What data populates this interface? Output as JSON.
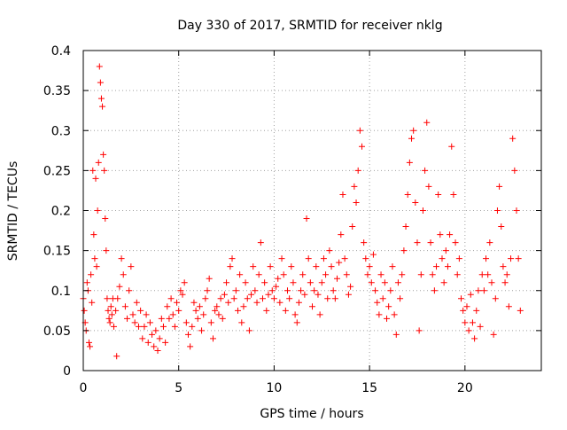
{
  "chart_data": {
    "type": "scatter",
    "title": "Day 330 of 2017, SRMTID for receiver nklg",
    "xlabel": "GPS time / hours",
    "ylabel": "SRMTID / TECUs",
    "xlim": [
      0,
      24
    ],
    "ylim": [
      0,
      0.4
    ],
    "x_ticks": [
      0,
      5,
      10,
      15,
      20
    ],
    "x_tick_labels": [
      "0",
      "5",
      "10",
      "15",
      "20"
    ],
    "y_ticks": [
      0,
      0.05,
      0.1,
      0.15,
      0.2,
      0.25,
      0.3,
      0.35,
      0.4
    ],
    "y_tick_labels": [
      "0",
      "0.05",
      "0.1",
      "0.15",
      "0.2",
      "0.25",
      "0.3",
      "0.35",
      "0.4"
    ],
    "grid": true,
    "marker": "+",
    "marker_color": "#ff0000",
    "series": [
      {
        "name": "SRMTID",
        "points": [
          [
            0.0,
            0.09
          ],
          [
            0.05,
            0.075
          ],
          [
            0.1,
            0.06
          ],
          [
            0.15,
            0.05
          ],
          [
            0.2,
            0.11
          ],
          [
            0.25,
            0.1
          ],
          [
            0.3,
            0.035
          ],
          [
            0.35,
            0.03
          ],
          [
            0.4,
            0.12
          ],
          [
            0.45,
            0.085
          ],
          [
            0.5,
            0.25
          ],
          [
            0.55,
            0.17
          ],
          [
            0.6,
            0.14
          ],
          [
            0.65,
            0.24
          ],
          [
            0.7,
            0.13
          ],
          [
            0.75,
            0.2
          ],
          [
            0.8,
            0.26
          ],
          [
            0.85,
            0.38
          ],
          [
            0.9,
            0.36
          ],
          [
            0.95,
            0.34
          ],
          [
            1.0,
            0.33
          ],
          [
            1.05,
            0.27
          ],
          [
            1.1,
            0.25
          ],
          [
            1.15,
            0.19
          ],
          [
            1.2,
            0.15
          ],
          [
            1.25,
            0.09
          ],
          [
            1.3,
            0.075
          ],
          [
            1.35,
            0.065
          ],
          [
            1.4,
            0.06
          ],
          [
            1.45,
            0.08
          ],
          [
            1.5,
            0.07
          ],
          [
            1.55,
            0.09
          ],
          [
            1.6,
            0.055
          ],
          [
            1.7,
            0.075
          ],
          [
            1.75,
            0.018
          ],
          [
            1.8,
            0.09
          ],
          [
            1.9,
            0.105
          ],
          [
            2.0,
            0.14
          ],
          [
            2.1,
            0.12
          ],
          [
            2.2,
            0.08
          ],
          [
            2.3,
            0.065
          ],
          [
            2.4,
            0.1
          ],
          [
            2.5,
            0.13
          ],
          [
            2.6,
            0.07
          ],
          [
            2.7,
            0.06
          ],
          [
            2.8,
            0.085
          ],
          [
            2.9,
            0.055
          ],
          [
            3.0,
            0.075
          ],
          [
            3.1,
            0.04
          ],
          [
            3.2,
            0.055
          ],
          [
            3.3,
            0.07
          ],
          [
            3.4,
            0.035
          ],
          [
            3.5,
            0.06
          ],
          [
            3.6,
            0.045
          ],
          [
            3.7,
            0.03
          ],
          [
            3.8,
            0.05
          ],
          [
            3.9,
            0.025
          ],
          [
            4.0,
            0.04
          ],
          [
            4.1,
            0.065
          ],
          [
            4.2,
            0.055
          ],
          [
            4.3,
            0.035
          ],
          [
            4.4,
            0.08
          ],
          [
            4.5,
            0.065
          ],
          [
            4.6,
            0.09
          ],
          [
            4.7,
            0.07
          ],
          [
            4.8,
            0.055
          ],
          [
            4.9,
            0.085
          ],
          [
            5.0,
            0.075
          ],
          [
            5.1,
            0.1
          ],
          [
            5.2,
            0.095
          ],
          [
            5.3,
            0.11
          ],
          [
            5.4,
            0.06
          ],
          [
            5.5,
            0.045
          ],
          [
            5.6,
            0.03
          ],
          [
            5.7,
            0.055
          ],
          [
            5.8,
            0.085
          ],
          [
            5.9,
            0.075
          ],
          [
            6.0,
            0.065
          ],
          [
            6.1,
            0.08
          ],
          [
            6.2,
            0.05
          ],
          [
            6.3,
            0.07
          ],
          [
            6.4,
            0.09
          ],
          [
            6.5,
            0.1
          ],
          [
            6.6,
            0.115
          ],
          [
            6.7,
            0.06
          ],
          [
            6.8,
            0.04
          ],
          [
            6.9,
            0.075
          ],
          [
            7.0,
            0.08
          ],
          [
            7.1,
            0.07
          ],
          [
            7.2,
            0.09
          ],
          [
            7.3,
            0.065
          ],
          [
            7.4,
            0.095
          ],
          [
            7.5,
            0.11
          ],
          [
            7.6,
            0.085
          ],
          [
            7.7,
            0.13
          ],
          [
            7.8,
            0.14
          ],
          [
            7.9,
            0.09
          ],
          [
            8.0,
            0.1
          ],
          [
            8.1,
            0.075
          ],
          [
            8.2,
            0.12
          ],
          [
            8.3,
            0.06
          ],
          [
            8.4,
            0.08
          ],
          [
            8.5,
            0.11
          ],
          [
            8.6,
            0.09
          ],
          [
            8.7,
            0.05
          ],
          [
            8.8,
            0.095
          ],
          [
            8.9,
            0.13
          ],
          [
            9.0,
            0.1
          ],
          [
            9.1,
            0.085
          ],
          [
            9.2,
            0.12
          ],
          [
            9.3,
            0.16
          ],
          [
            9.4,
            0.09
          ],
          [
            9.5,
            0.11
          ],
          [
            9.6,
            0.075
          ],
          [
            9.7,
            0.095
          ],
          [
            9.8,
            0.13
          ],
          [
            9.9,
            0.1
          ],
          [
            10.0,
            0.09
          ],
          [
            10.1,
            0.105
          ],
          [
            10.2,
            0.115
          ],
          [
            10.3,
            0.085
          ],
          [
            10.4,
            0.14
          ],
          [
            10.5,
            0.12
          ],
          [
            10.6,
            0.075
          ],
          [
            10.7,
            0.1
          ],
          [
            10.8,
            0.09
          ],
          [
            10.9,
            0.13
          ],
          [
            11.0,
            0.11
          ],
          [
            11.1,
            0.07
          ],
          [
            11.2,
            0.06
          ],
          [
            11.3,
            0.085
          ],
          [
            11.4,
            0.1
          ],
          [
            11.5,
            0.12
          ],
          [
            11.6,
            0.095
          ],
          [
            11.7,
            0.19
          ],
          [
            11.8,
            0.14
          ],
          [
            11.9,
            0.11
          ],
          [
            12.0,
            0.08
          ],
          [
            12.1,
            0.1
          ],
          [
            12.2,
            0.13
          ],
          [
            12.3,
            0.095
          ],
          [
            12.4,
            0.07
          ],
          [
            12.5,
            0.11
          ],
          [
            12.6,
            0.14
          ],
          [
            12.7,
            0.12
          ],
          [
            12.8,
            0.09
          ],
          [
            12.9,
            0.15
          ],
          [
            13.0,
            0.13
          ],
          [
            13.1,
            0.1
          ],
          [
            13.2,
            0.09
          ],
          [
            13.3,
            0.115
          ],
          [
            13.4,
            0.135
          ],
          [
            13.5,
            0.17
          ],
          [
            13.6,
            0.22
          ],
          [
            13.7,
            0.14
          ],
          [
            13.8,
            0.12
          ],
          [
            13.9,
            0.095
          ],
          [
            14.0,
            0.105
          ],
          [
            14.1,
            0.18
          ],
          [
            14.2,
            0.23
          ],
          [
            14.3,
            0.21
          ],
          [
            14.4,
            0.25
          ],
          [
            14.5,
            0.3
          ],
          [
            14.6,
            0.28
          ],
          [
            14.7,
            0.16
          ],
          [
            14.8,
            0.14
          ],
          [
            14.9,
            0.12
          ],
          [
            15.0,
            0.13
          ],
          [
            15.1,
            0.11
          ],
          [
            15.2,
            0.145
          ],
          [
            15.3,
            0.1
          ],
          [
            15.4,
            0.085
          ],
          [
            15.5,
            0.07
          ],
          [
            15.6,
            0.12
          ],
          [
            15.7,
            0.09
          ],
          [
            15.8,
            0.11
          ],
          [
            15.9,
            0.065
          ],
          [
            16.0,
            0.08
          ],
          [
            16.1,
            0.1
          ],
          [
            16.2,
            0.13
          ],
          [
            16.3,
            0.07
          ],
          [
            16.4,
            0.045
          ],
          [
            16.5,
            0.11
          ],
          [
            16.6,
            0.09
          ],
          [
            16.7,
            0.12
          ],
          [
            16.8,
            0.15
          ],
          [
            16.9,
            0.18
          ],
          [
            17.0,
            0.22
          ],
          [
            17.1,
            0.26
          ],
          [
            17.2,
            0.29
          ],
          [
            17.3,
            0.3
          ],
          [
            17.4,
            0.21
          ],
          [
            17.5,
            0.16
          ],
          [
            17.6,
            0.05
          ],
          [
            17.7,
            0.12
          ],
          [
            17.8,
            0.2
          ],
          [
            17.9,
            0.25
          ],
          [
            18.0,
            0.31
          ],
          [
            18.1,
            0.23
          ],
          [
            18.2,
            0.16
          ],
          [
            18.3,
            0.12
          ],
          [
            18.4,
            0.1
          ],
          [
            18.5,
            0.13
          ],
          [
            18.6,
            0.22
          ],
          [
            18.7,
            0.17
          ],
          [
            18.8,
            0.14
          ],
          [
            18.9,
            0.11
          ],
          [
            19.0,
            0.15
          ],
          [
            19.1,
            0.13
          ],
          [
            19.2,
            0.17
          ],
          [
            19.3,
            0.28
          ],
          [
            19.4,
            0.22
          ],
          [
            19.5,
            0.16
          ],
          [
            19.6,
            0.12
          ],
          [
            19.7,
            0.14
          ],
          [
            19.8,
            0.09
          ],
          [
            19.9,
            0.075
          ],
          [
            20.0,
            0.06
          ],
          [
            20.1,
            0.08
          ],
          [
            20.2,
            0.05
          ],
          [
            20.3,
            0.095
          ],
          [
            20.4,
            0.06
          ],
          [
            20.5,
            0.04
          ],
          [
            20.6,
            0.075
          ],
          [
            20.7,
            0.1
          ],
          [
            20.8,
            0.055
          ],
          [
            20.9,
            0.12
          ],
          [
            21.0,
            0.1
          ],
          [
            21.1,
            0.14
          ],
          [
            21.2,
            0.12
          ],
          [
            21.3,
            0.16
          ],
          [
            21.4,
            0.11
          ],
          [
            21.5,
            0.045
          ],
          [
            21.6,
            0.09
          ],
          [
            21.7,
            0.2
          ],
          [
            21.8,
            0.23
          ],
          [
            21.9,
            0.18
          ],
          [
            22.0,
            0.13
          ],
          [
            22.1,
            0.11
          ],
          [
            22.2,
            0.12
          ],
          [
            22.3,
            0.08
          ],
          [
            22.4,
            0.14
          ],
          [
            22.5,
            0.29
          ],
          [
            22.6,
            0.25
          ],
          [
            22.7,
            0.2
          ],
          [
            22.8,
            0.14
          ],
          [
            22.9,
            0.075
          ]
        ]
      }
    ]
  }
}
